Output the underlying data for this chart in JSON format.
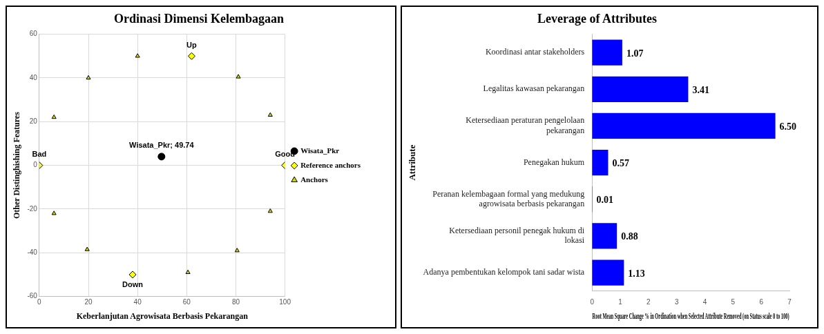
{
  "chart_data": [
    {
      "type": "scatter",
      "title": "Ordinasi Dimensi Kelembagaan",
      "xlabel": "Keberlanjutan Agrowisata Berbasis Pekarangan",
      "ylabel": "Other Distinghishing Features",
      "xlim": [
        0,
        100
      ],
      "xticks": [
        0,
        20,
        40,
        60,
        80,
        100
      ],
      "ylim": [
        -60,
        60
      ],
      "yticks": [
        -60,
        -40,
        -20,
        0,
        20,
        40,
        60
      ],
      "grid": true,
      "legend": "right",
      "series": [
        {
          "name": "Wisata_Pkr",
          "color": "#000000",
          "marker": "circle",
          "x": [
            49.74
          ],
          "values": [
            4
          ]
        },
        {
          "name": "Reference anchors",
          "color": "#ffff00",
          "marker": "diamond",
          "x": [
            0,
            100,
            62,
            38
          ],
          "values": [
            0,
            0,
            50,
            -50
          ]
        },
        {
          "name": "Anchors",
          "color": "#d4d400",
          "marker": "triangle",
          "x": [
            6,
            20,
            40,
            81,
            94,
            6,
            19.5,
            60.5,
            80.5,
            94
          ],
          "values": [
            22,
            40,
            50,
            40.5,
            23,
            -22,
            -38.5,
            -49,
            -39,
            -21
          ]
        }
      ],
      "annotations": [
        {
          "text": "Wisata_Pkr; 49.74",
          "x": 49.74,
          "y": 4
        },
        {
          "text": "Bad",
          "x": 0,
          "y": 0
        },
        {
          "text": "Good",
          "x": 100,
          "y": 0
        },
        {
          "text": "Up",
          "x": 62,
          "y": 50
        },
        {
          "text": "Down",
          "x": 38,
          "y": -50
        }
      ]
    },
    {
      "type": "bar",
      "orientation": "horizontal",
      "title": "Leverage of Attributes",
      "xlabel": "Root Mean Square Change % in Ordination when Selected Attribute Removed (on Status scale 0 to 100)",
      "ylabel": "Attribute",
      "xlim": [
        0,
        7
      ],
      "xticks": [
        0,
        1,
        2,
        3,
        4,
        5,
        6,
        7
      ],
      "grid": false,
      "color": "#0000ff",
      "categories": [
        "Koordinasi antar stakeholders",
        "Legalitas kawasan pekarangan",
        "Ketersediaan peraturan pengelolaan pekarangan",
        "Penegakan hukum",
        "Peranan kelembagaan formal yang medukung agrowisata berbasis pekarangan",
        "Ketersediaan personil penegak hukum di lokasi",
        "Adanya pembentukan kelompok tani sadar wista"
      ],
      "values": [
        1.07,
        3.41,
        6.5,
        0.57,
        0.01,
        0.88,
        1.13
      ],
      "value_labels": [
        "1.07",
        "3.41",
        "6.50",
        "0.57",
        "0.01",
        "0.88",
        "1.13"
      ]
    }
  ]
}
